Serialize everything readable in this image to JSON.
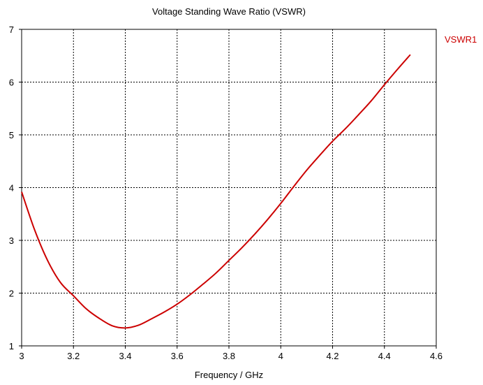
{
  "chart_data": {
    "type": "line",
    "title": "Voltage Standing Wave Ratio (VSWR)",
    "xlabel": "Frequency / GHz",
    "ylabel": "",
    "xlim": [
      3,
      4.6
    ],
    "ylim": [
      1,
      7
    ],
    "xticks": [
      "3",
      "3.2",
      "3.4",
      "3.6",
      "3.8",
      "4",
      "4.2",
      "4.4",
      "4.6"
    ],
    "yticks": [
      "1",
      "2",
      "3",
      "4",
      "5",
      "6",
      "7"
    ],
    "grid": true,
    "legend_position": "top-right",
    "series": [
      {
        "name": "VSWR1",
        "color": "#cc0000",
        "x": [
          3.0,
          3.05,
          3.1,
          3.15,
          3.2,
          3.25,
          3.3,
          3.35,
          3.4,
          3.45,
          3.5,
          3.55,
          3.6,
          3.65,
          3.7,
          3.75,
          3.8,
          3.85,
          3.9,
          3.95,
          4.0,
          4.05,
          4.1,
          4.15,
          4.2,
          4.25,
          4.3,
          4.35,
          4.4,
          4.45,
          4.5
        ],
        "y": [
          3.92,
          3.2,
          2.62,
          2.2,
          1.95,
          1.7,
          1.52,
          1.38,
          1.34,
          1.39,
          1.51,
          1.64,
          1.79,
          1.97,
          2.17,
          2.38,
          2.62,
          2.86,
          3.12,
          3.4,
          3.7,
          4.02,
          4.33,
          4.61,
          4.88,
          5.12,
          5.38,
          5.65,
          5.95,
          6.24,
          6.52
        ]
      }
    ]
  }
}
